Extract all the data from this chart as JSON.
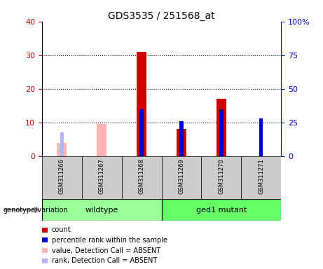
{
  "title": "GDS3535 / 251568_at",
  "samples": [
    "GSM311266",
    "GSM311267",
    "GSM311268",
    "GSM311269",
    "GSM311270",
    "GSM311271"
  ],
  "count_present": [
    0,
    0,
    31,
    8,
    17,
    0
  ],
  "rank_present_pct": [
    0,
    0,
    35,
    26,
    35,
    28
  ],
  "count_absent": [
    4,
    9.5,
    0,
    0,
    0,
    0
  ],
  "rank_absent_pct": [
    17.5,
    0,
    0,
    0,
    0,
    0
  ],
  "present_mask": [
    false,
    false,
    true,
    true,
    true,
    true
  ],
  "absent_mask": [
    true,
    true,
    false,
    false,
    false,
    false
  ],
  "ylim_left": [
    0,
    40
  ],
  "ylim_right": [
    0,
    100
  ],
  "yticks_left": [
    0,
    10,
    20,
    30,
    40
  ],
  "yticks_right": [
    0,
    25,
    50,
    75,
    100
  ],
  "yticklabels_right": [
    "0",
    "25",
    "50",
    "75",
    "100%"
  ],
  "color_count_present": "#cc0000",
  "color_rank_present": "#0000cc",
  "color_count_absent": "#ffb3b3",
  "color_rank_absent": "#b3b3ff",
  "bg_color": "#ffffff",
  "plot_bg": "#ffffff",
  "sample_box_color": "#cccccc",
  "group_color_wildtype": "#99ff99",
  "group_color_mutant": "#66ff66",
  "wildtype_range": [
    0,
    2
  ],
  "mutant_range": [
    3,
    5
  ],
  "legend_items": [
    {
      "color": "#cc0000",
      "label": "count"
    },
    {
      "color": "#0000cc",
      "label": "percentile rank within the sample"
    },
    {
      "color": "#ffb3b3",
      "label": "value, Detection Call = ABSENT"
    },
    {
      "color": "#b3b3ff",
      "label": "rank, Detection Call = ABSENT"
    }
  ]
}
